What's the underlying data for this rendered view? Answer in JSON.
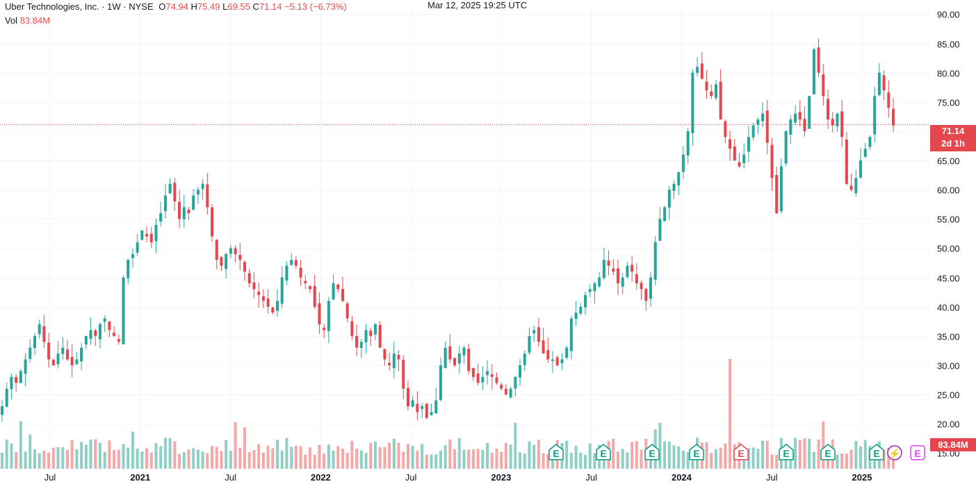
{
  "legend": {
    "symbol": "Uber Technologies, Inc. · 1W · NYSE",
    "open_key": "O",
    "open": "74.94",
    "high_key": "H",
    "high": "75.49",
    "low_key": "L",
    "low": "69.55",
    "close_key": "C",
    "close": "71.14",
    "change": "−5.13 (−6.73%)",
    "vol_key": "Vol",
    "vol": "83.84M",
    "timestamp": "Mar 12, 2025 19:25 UTC"
  },
  "price_tag": {
    "price": "71.14",
    "countdown": "2d 1h"
  },
  "volume_tag": "83.84M",
  "colors": {
    "up": "#26a69a",
    "down": "#e5474e",
    "up_vol": "#8fd0c6",
    "down_vol": "#f4a8a8"
  },
  "events": [
    {
      "label": "E",
      "kind": "earnings-up"
    },
    {
      "label": "E",
      "kind": "earnings-up"
    },
    {
      "label": "E",
      "kind": "earnings-up"
    },
    {
      "label": "E",
      "kind": "earnings-up"
    },
    {
      "label": "E",
      "kind": "earnings-down"
    },
    {
      "label": "E",
      "kind": "earnings-up"
    },
    {
      "label": "E",
      "kind": "earnings-up"
    },
    {
      "label": "E",
      "kind": "earnings-up"
    },
    {
      "label": "⚡",
      "kind": "lightning"
    },
    {
      "label": "E",
      "kind": "earnings-upcoming"
    }
  ],
  "chart_data": {
    "type": "candlestick",
    "title": "Uber Technologies, Inc. · 1W · NYSE",
    "y_ticks": [
      "15.00",
      "20.00",
      "25.00",
      "30.00",
      "35.00",
      "40.00",
      "45.00",
      "50.00",
      "55.00",
      "60.00",
      "65.00",
      "70.00",
      "75.00",
      "80.00",
      "85.00",
      "90.00"
    ],
    "ylim": [
      13.5,
      91
    ],
    "x_ticks": [
      {
        "label": "Jul",
        "bold": false
      },
      {
        "label": "2021",
        "bold": true
      },
      {
        "label": "Jul",
        "bold": false
      },
      {
        "label": "2022",
        "bold": true
      },
      {
        "label": "Jul",
        "bold": false
      },
      {
        "label": "2023",
        "bold": true
      },
      {
        "label": "Jul",
        "bold": false
      },
      {
        "label": "2024",
        "bold": true
      },
      {
        "label": "Jul",
        "bold": false
      },
      {
        "label": "2025",
        "bold": true
      }
    ],
    "current_price": 71.14,
    "grid": true,
    "close_series_weekly_approx": [
      23,
      26,
      28,
      27,
      29,
      31,
      33,
      35,
      37,
      34,
      31,
      30,
      32,
      33,
      31,
      30,
      31,
      33,
      35,
      36,
      35,
      37,
      38,
      36,
      35,
      34,
      45,
      48,
      49,
      51,
      53,
      52,
      51,
      54,
      56,
      59,
      61,
      58,
      55,
      57,
      56,
      59,
      60,
      61,
      57,
      52,
      48,
      47,
      49,
      50,
      49,
      48,
      46,
      44,
      43,
      42,
      41,
      40,
      39,
      41,
      45,
      47,
      48,
      47,
      45,
      44,
      43,
      40,
      37,
      36,
      41,
      44,
      43,
      41,
      38,
      35,
      33,
      34,
      36,
      35,
      37,
      33,
      31,
      30,
      32,
      31,
      26,
      23,
      24,
      22,
      23,
      21,
      22,
      24,
      30,
      33,
      31,
      30,
      32,
      33,
      29,
      28,
      27,
      28,
      29,
      28,
      27,
      26,
      25,
      26,
      28,
      30,
      32,
      35,
      36,
      34,
      32,
      31,
      31,
      30,
      31,
      33,
      38,
      39,
      40,
      42,
      43,
      44,
      45,
      48,
      47,
      46,
      44,
      45,
      47,
      46,
      44,
      43,
      41,
      45,
      51,
      55,
      57,
      60,
      61,
      63,
      66,
      70,
      80,
      81,
      79,
      77,
      76,
      78,
      72,
      69,
      67,
      65,
      64,
      66,
      69,
      71,
      72,
      73,
      68,
      62,
      56,
      64,
      70,
      72,
      73,
      72,
      70,
      76,
      84,
      80,
      76,
      72,
      71,
      73,
      69,
      61,
      60,
      62,
      65,
      67,
      69,
      76,
      80,
      77,
      74,
      71
    ],
    "volume_unit": "M",
    "last_volume": "83.84M"
  }
}
